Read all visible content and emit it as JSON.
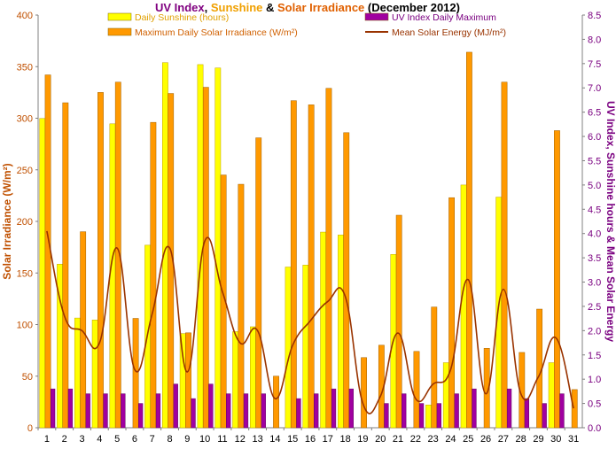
{
  "chart_data": {
    "type": "bar",
    "title_parts": [
      {
        "text": "UV Index",
        "color": "#800080"
      },
      {
        "text": ", ",
        "color": "#000000"
      },
      {
        "text": "Sunshine",
        "color": "#f0a000"
      },
      {
        "text": " & ",
        "color": "#000000"
      },
      {
        "text": "Solar Irradiance",
        "color": "#e06000"
      },
      {
        "text": " (December 2012)",
        "color": "#000000"
      }
    ],
    "ylabel_left": "Solar Irradiance (W/m²)",
    "ylabel_right": "UV Index, Sunshine hours & Mean Solar Energy",
    "ylim_left": [
      0,
      400
    ],
    "ylim_right": [
      0,
      8.5
    ],
    "yticks_left": [
      "0",
      "50",
      "100",
      "150",
      "200",
      "250",
      "300",
      "350",
      "400"
    ],
    "yticks_right": [
      "0.0",
      "0.5",
      "1.0",
      "1.5",
      "2.0",
      "2.5",
      "3.0",
      "3.5",
      "4.0",
      "4.5",
      "5.0",
      "5.5",
      "6.0",
      "6.5",
      "7.0",
      "7.5",
      "8.0",
      "8.5"
    ],
    "categories": [
      "1",
      "2",
      "3",
      "4",
      "5",
      "6",
      "7",
      "8",
      "9",
      "10",
      "11",
      "12",
      "13",
      "14",
      "15",
      "16",
      "17",
      "18",
      "19",
      "20",
      "21",
      "22",
      "23",
      "24",
      "25",
      "26",
      "27",
      "28",
      "29",
      "30",
      "31"
    ],
    "colors": {
      "sunshine": "#ffff00",
      "irradiance": "#ff9900",
      "uv": "#a000a0",
      "energy": "#993300",
      "bar_edge": "#a06000",
      "right_axis_text": "#7a0080",
      "left_axis_text": "#c05000"
    },
    "series": [
      {
        "name": "Daily Sunshine (hours)",
        "axis": "right",
        "kind": "bar",
        "values": [
          6.37,
          3.37,
          2.26,
          2.22,
          6.26,
          0.0,
          3.76,
          7.52,
          1.94,
          7.48,
          7.41,
          1.98,
          2.08,
          0.0,
          3.31,
          3.35,
          4.03,
          3.97,
          0.0,
          0.0,
          3.57,
          0.0,
          0.47,
          1.34,
          5.0,
          0.0,
          4.75,
          0.0,
          0.0,
          1.34,
          0.0
        ]
      },
      {
        "name": "Maximum Daily Solar Irradiance (W/m²)",
        "axis": "left",
        "kind": "bar",
        "values": [
          342,
          315,
          190,
          325,
          335,
          106,
          296,
          324,
          92,
          330,
          245,
          236,
          281,
          50,
          317,
          313,
          329,
          286,
          68,
          80,
          206,
          74,
          117,
          223,
          364,
          77,
          335,
          73,
          115,
          288,
          37
        ]
      },
      {
        "name": "UV Index Daily Maximum",
        "axis": "right",
        "kind": "bar",
        "values": [
          0.8,
          0.8,
          0.7,
          0.7,
          0.7,
          0.5,
          0.7,
          0.9,
          0.6,
          0.9,
          0.7,
          0.7,
          0.7,
          0.0,
          0.6,
          0.7,
          0.8,
          0.8,
          0.0,
          0.5,
          0.7,
          0.5,
          0.5,
          0.7,
          0.8,
          0.0,
          0.8,
          0.6,
          0.5,
          0.7,
          0.0
        ]
      },
      {
        "name": "Mean Solar Energy (MJ/m²)",
        "axis": "right",
        "kind": "line",
        "values": [
          4.05,
          2.3,
          2.0,
          1.75,
          3.7,
          1.2,
          2.35,
          3.7,
          1.15,
          3.85,
          2.8,
          1.75,
          2.0,
          0.6,
          1.7,
          2.2,
          2.6,
          2.7,
          0.5,
          0.65,
          1.95,
          0.6,
          0.9,
          1.2,
          3.05,
          0.7,
          2.85,
          0.7,
          1.05,
          1.85,
          0.4
        ]
      }
    ],
    "legend": [
      {
        "label": "Daily Sunshine (hours)",
        "color": "#ffff00",
        "kind": "box"
      },
      {
        "label": "UV Index Daily Maximum",
        "color": "#a000a0",
        "kind": "box"
      },
      {
        "label": "Maximum Daily Solar Irradiance (W/m²)",
        "color": "#ff9900",
        "kind": "box"
      },
      {
        "label": "Mean Solar Energy (MJ/m²)",
        "color": "#993300",
        "kind": "line"
      }
    ],
    "legend_position": "top-center",
    "grid": false
  }
}
